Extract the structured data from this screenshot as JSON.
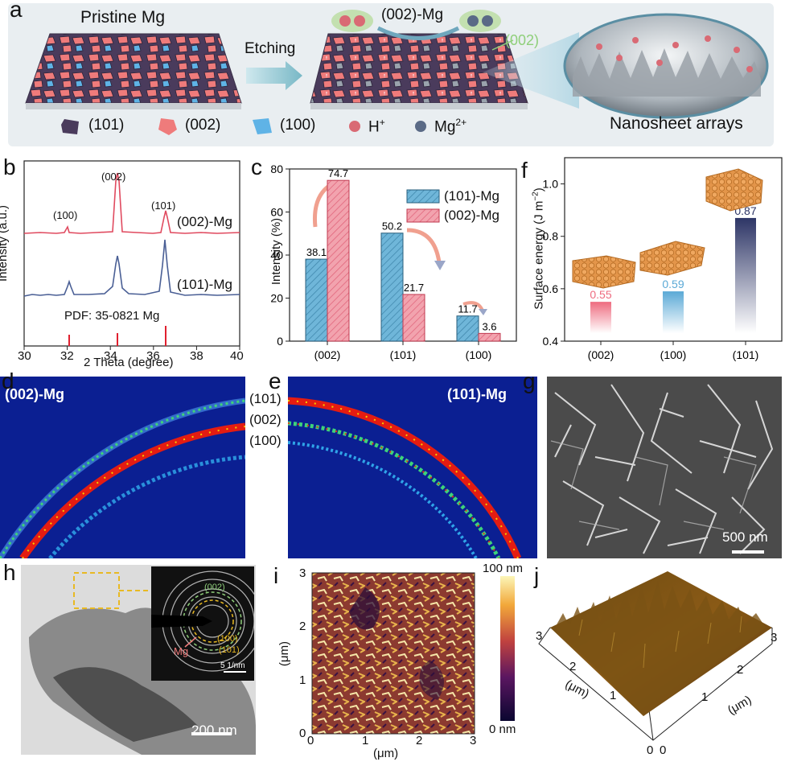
{
  "panel_labels": {
    "a": "a",
    "b": "b",
    "c": "c",
    "d": "d",
    "e": "e",
    "f": "f",
    "g": "g",
    "h": "h",
    "i": "i",
    "j": "j"
  },
  "panel_a": {
    "pristine_label": "Pristine Mg",
    "etching_label": "Etching",
    "etched_label": "(002)-Mg",
    "facet_callout": "(002)",
    "nanosheet_label": "Nanosheet arrays",
    "legend": [
      {
        "name": "(101)",
        "color": "#4a3b5c"
      },
      {
        "name": "(002)",
        "color": "#ef7b7b"
      },
      {
        "name": "(100)",
        "color": "#5fb3e6"
      },
      {
        "name": "H",
        "sup": "+",
        "color": "#d96a74"
      },
      {
        "name": "Mg",
        "sup": "2+",
        "color": "#5a6a86"
      }
    ]
  },
  "panel_b": {
    "xlabel": "2 Theta (degree)",
    "ylabel": "Intensity (a.u.)",
    "xticks": [
      "30",
      "32",
      "34",
      "36",
      "38",
      "40"
    ],
    "xlim": [
      30,
      40
    ],
    "peak_labels": {
      "p100": "(100)",
      "p002": "(002)",
      "p101": "(101)"
    },
    "series_002": "(002)-Mg",
    "series_101": "(101)-Mg",
    "pdf_label": "PDF: 35-0821 Mg"
  },
  "chart_data": [
    {
      "type": "bar",
      "categories": [
        "(002)",
        "(101)",
        "(100)"
      ],
      "series": [
        {
          "name": "(101)-Mg",
          "values": [
            38.1,
            50.2,
            11.7
          ]
        },
        {
          "name": "(002)-Mg",
          "values": [
            74.7,
            21.7,
            3.6
          ]
        }
      ],
      "xlabel": "",
      "ylabel": "Intensity (%)",
      "ylim": [
        0,
        80
      ],
      "yticks": [
        "0",
        "20",
        "40",
        "60",
        "80"
      ],
      "legend_position": "top-right"
    },
    {
      "type": "bar",
      "categories": [
        "(002)",
        "(100)",
        "(101)"
      ],
      "values": [
        0.55,
        0.59,
        0.87
      ],
      "value_labels": [
        "0.55",
        "0.59",
        "0.87"
      ],
      "xlabel": "",
      "ylabel": "Surface energy (J m",
      "ylabel_sup": "−2",
      "ylabel_end": ")",
      "ylim": [
        0.4,
        1.1
      ],
      "yticks": [
        "0.4",
        "0.6",
        "0.8",
        "1.0"
      ],
      "colors": [
        "#ee6b7f",
        "#5aa9d6",
        "#2d3566"
      ]
    }
  ],
  "panel_d": {
    "title": "(002)-Mg"
  },
  "panel_e": {
    "title": "(101)-Mg",
    "ring_labels": [
      "(101)",
      "(002)",
      "(100)"
    ]
  },
  "panel_g": {
    "scalebar": "500 nm"
  },
  "panel_h": {
    "scalebar": "200 nm",
    "inset_scalebar": "5 1/nm",
    "ring_002": "(002)",
    "ring_100": "(100)",
    "ring_101": "(101)",
    "mg_label": "Mg"
  },
  "panel_i": {
    "xlabel": "(μm)",
    "ylabel": "(μm)",
    "ticks": [
      "0",
      "1",
      "2",
      "3"
    ],
    "cbar_max": "100 nm",
    "cbar_min": "0 nm"
  },
  "panel_j": {
    "axis_label_left": "(μm)",
    "axis_label_right": "(μm)",
    "left_ticks": [
      "3",
      "2",
      "1",
      "0"
    ],
    "right_ticks": [
      "0",
      "1",
      "2",
      "3"
    ]
  }
}
